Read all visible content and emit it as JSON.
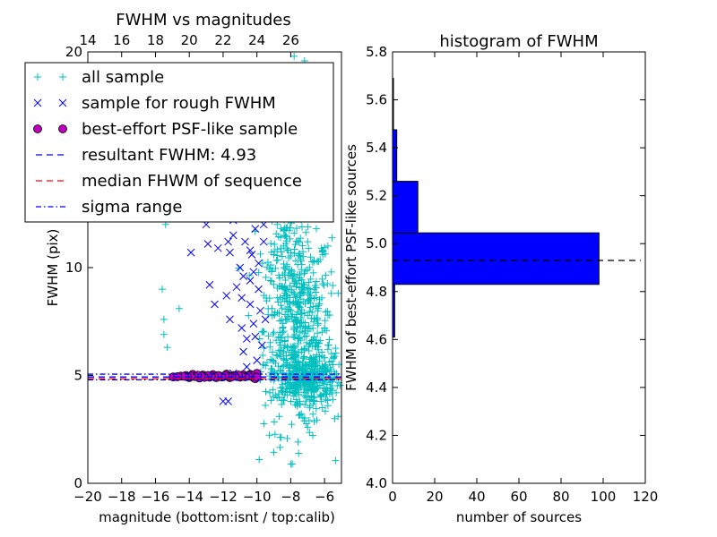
{
  "chart_data": [
    {
      "type": "scatter",
      "title": "FWHM vs magnitudes",
      "xlabel": "magnitude (bottom:isnt / top:calib)",
      "ylabel": "FWHM (pix)",
      "xlim": [
        -20,
        -5
      ],
      "ylim": [
        0,
        20
      ],
      "x_ticks": [
        -20,
        -18,
        -16,
        -14,
        -12,
        -10,
        -8,
        -6
      ],
      "y_ticks": [
        0,
        5,
        10,
        15,
        20
      ],
      "top_axis": {
        "offset": 34,
        "ticks": [
          14,
          16,
          18,
          20,
          22,
          24,
          26
        ]
      },
      "grid": false,
      "legend_position": "upper-left",
      "series": [
        {
          "name": "all sample",
          "marker": "plus",
          "color": "#00bfbf",
          "points": [
            [
              -15.4,
              12.0
            ],
            [
              -15.6,
              9.0
            ],
            [
              -15.5,
              7.6
            ],
            [
              -15.3,
              6.3
            ],
            [
              -15.5,
              6.9
            ],
            [
              -14.6,
              8.1
            ],
            [
              -14.0,
              12.5
            ],
            [
              -9.2,
              18.2
            ],
            [
              -7.0,
              11.2
            ],
            [
              -6.4,
              4.4
            ],
            [
              -5.6,
              8.8
            ],
            [
              -5.4,
              3.0
            ],
            [
              -5.2,
              3.1
            ],
            [
              -7.2,
              2.9
            ],
            [
              -7.0,
              2.6
            ],
            [
              -6.6,
              3.8
            ],
            [
              -8.2,
              16.5
            ],
            [
              -8.0,
              15.5
            ],
            [
              -7.6,
              14.0
            ],
            [
              -7.4,
              13.0
            ],
            [
              -8.8,
              12.0
            ],
            [
              -8.6,
              11.4
            ],
            [
              -9.0,
              10.6
            ],
            [
              -8.4,
              10.0
            ],
            [
              -7.8,
              9.6
            ],
            [
              -7.2,
              9.2
            ],
            [
              -6.8,
              8.6
            ],
            [
              -6.4,
              8.0
            ],
            [
              -6.0,
              7.2
            ],
            [
              -5.8,
              6.4
            ],
            [
              -8.6,
              5.2
            ],
            [
              -8.2,
              4.8
            ],
            [
              -7.6,
              4.6
            ],
            [
              -7.0,
              4.3
            ],
            [
              -6.6,
              4.0
            ],
            [
              -6.2,
              3.8
            ],
            [
              -5.8,
              3.6
            ],
            [
              -5.6,
              4.9
            ],
            [
              -5.5,
              5.5
            ],
            [
              -5.7,
              7.8
            ],
            [
              -5.6,
              9.8
            ],
            [
              -5.8,
              11.0
            ],
            [
              -6.6,
              12.4
            ],
            [
              -7.4,
              16.4
            ],
            [
              -7.0,
              18.4
            ],
            [
              -9.8,
              4.8
            ],
            [
              -9.4,
              5.6
            ],
            [
              -9.0,
              7.0
            ],
            [
              -8.8,
              8.6
            ],
            [
              -9.2,
              9.4
            ],
            [
              -9.6,
              12.6
            ],
            [
              -8.6,
              14.2
            ],
            [
              -8.4,
              18.0
            ],
            [
              -7.8,
              19.8
            ]
          ],
          "clouds": [
            {
              "cx": -7.6,
              "cy": 7.2,
              "sx": 1.0,
              "sy": 2.4,
              "n": 520
            },
            {
              "cx": -8.6,
              "cy": 13.5,
              "sx": 0.7,
              "sy": 3.0,
              "n": 180
            },
            {
              "cx": -7.0,
              "cy": 4.9,
              "sx": 1.0,
              "sy": 0.55,
              "n": 320
            }
          ]
        },
        {
          "name": "sample for rough FWHM",
          "marker": "x",
          "color": "#0000ff",
          "points": [
            [
              -13.9,
              10.7
            ],
            [
              -12.9,
              11.1
            ],
            [
              -12.3,
              10.9
            ],
            [
              -11.6,
              10.7
            ],
            [
              -11.4,
              11.5
            ],
            [
              -12.8,
              9.2
            ],
            [
              -12.5,
              8.3
            ],
            [
              -11.8,
              8.7
            ],
            [
              -11.2,
              9.1
            ],
            [
              -11.6,
              7.6
            ],
            [
              -10.9,
              7.2
            ],
            [
              -10.6,
              6.7
            ],
            [
              -11.4,
              5.1
            ],
            [
              -12.0,
              3.8
            ],
            [
              -11.7,
              3.8
            ],
            [
              -10.8,
              9.6
            ],
            [
              -10.4,
              8.3
            ],
            [
              -10.2,
              7.4
            ],
            [
              -10.1,
              6.8
            ],
            [
              -10.0,
              5.7
            ],
            [
              -10.3,
              10.6
            ],
            [
              -10.1,
              11.8
            ],
            [
              -10.0,
              12.7
            ],
            [
              -11.2,
              13.6
            ],
            [
              -12.0,
              14.7
            ],
            [
              -11.0,
              16.1
            ],
            [
              -10.2,
              14.2
            ],
            [
              -10.1,
              15.7
            ],
            [
              -11.4,
              12.2
            ],
            [
              -12.2,
              12.4
            ],
            [
              -13.0,
              12.0
            ],
            [
              -11.8,
              13.1
            ],
            [
              -10.5,
              12.4
            ],
            [
              -11.0,
              10.0
            ],
            [
              -10.4,
              9.4
            ],
            [
              -9.9,
              9.0
            ],
            [
              -9.8,
              8.0
            ],
            [
              -10.7,
              11.2
            ],
            [
              -11.7,
              11.2
            ],
            [
              -10.2,
              13.2
            ],
            [
              -10.0,
              14.4
            ],
            [
              -10.2,
              9.8
            ],
            [
              -10.6,
              5.4
            ],
            [
              -10.8,
              6.1
            ],
            [
              -9.7,
              6.4
            ],
            [
              -9.9,
              10.2
            ],
            [
              -9.6,
              12.0
            ],
            [
              -10.3,
              16.6
            ],
            [
              -10.0,
              17.5
            ],
            [
              -9.8,
              15.0
            ],
            [
              -10.6,
              15.2
            ],
            [
              -10.9,
              13.0
            ],
            [
              -9.6,
              11.2
            ],
            [
              -9.5,
              7.6
            ],
            [
              -10.4,
              10.8
            ],
            [
              -10.9,
              8.6
            ]
          ]
        },
        {
          "name": "best-effort PSF-like sample",
          "marker": "circle",
          "color": "#bf00bf",
          "edge": "#000000",
          "points": [
            [
              -14.95,
              4.93
            ],
            [
              -14.5,
              4.97
            ],
            [
              -14.2,
              5.0
            ],
            [
              -14.0,
              4.9
            ],
            [
              -13.8,
              5.05
            ],
            [
              -13.6,
              4.95
            ],
            [
              -13.4,
              4.88
            ],
            [
              -13.2,
              5.02
            ],
            [
              -13.0,
              4.96
            ],
            [
              -12.8,
              4.92
            ],
            [
              -12.6,
              5.04
            ],
            [
              -12.4,
              4.9
            ],
            [
              -12.2,
              4.98
            ],
            [
              -12.0,
              4.94
            ],
            [
              -11.8,
              5.06
            ],
            [
              -11.6,
              4.9
            ],
            [
              -11.4,
              5.0
            ],
            [
              -11.2,
              4.95
            ],
            [
              -11.0,
              4.92
            ],
            [
              -10.8,
              5.03
            ],
            [
              -10.6,
              4.96
            ],
            [
              -10.4,
              5.05
            ],
            [
              -10.2,
              4.9
            ],
            [
              -10.0,
              5.1
            ],
            [
              -10.1,
              4.85
            ],
            [
              -10.3,
              5.0
            ],
            [
              -10.5,
              4.98
            ],
            [
              -10.7,
              4.94
            ],
            [
              -10.9,
              4.96
            ],
            [
              -11.1,
              5.02
            ],
            [
              -11.3,
              4.97
            ],
            [
              -11.5,
              4.93
            ],
            [
              -11.7,
              4.96
            ],
            [
              -11.9,
              4.99
            ],
            [
              -12.1,
              4.93
            ],
            [
              -12.3,
              5.0
            ],
            [
              -12.5,
              4.94
            ],
            [
              -12.7,
              4.97
            ],
            [
              -12.9,
              5.0
            ],
            [
              -13.1,
              4.91
            ],
            [
              -13.3,
              4.98
            ],
            [
              -13.5,
              5.01
            ],
            [
              -13.7,
              4.95
            ],
            [
              -13.9,
              4.97
            ],
            [
              -14.1,
              4.93
            ],
            [
              -14.3,
              4.96
            ],
            [
              -14.7,
              4.94
            ],
            [
              -10.0,
              4.92
            ]
          ]
        },
        {
          "name": "resultant FWHM: 4.93",
          "type": "hline",
          "style": "dashed",
          "color": "#0000ff",
          "value": 4.93
        },
        {
          "name": "median FHWM of sequence",
          "type": "hline",
          "style": "dashed",
          "color": "#ff0000",
          "value": 4.85
        },
        {
          "name": "sigma range",
          "type": "hline-pair",
          "style": "dashdot",
          "color": "#0000ff",
          "values": [
            4.8,
            5.06
          ]
        }
      ]
    },
    {
      "type": "bar",
      "orientation": "horizontal",
      "title": "histogram of FWHM",
      "xlabel": "number of sources",
      "ylabel": "FWHM of best-effort PSF-like sources",
      "xlim": [
        0,
        120
      ],
      "ylim": [
        4.0,
        5.8
      ],
      "x_ticks": [
        0,
        20,
        40,
        60,
        80,
        100,
        120
      ],
      "y_ticks": [
        4.0,
        4.2,
        4.4,
        4.6,
        4.8,
        5.0,
        5.2,
        5.4,
        5.6,
        5.8
      ],
      "grid": false,
      "bar_color": "#0000ff",
      "bins": [
        {
          "y0": 4.61,
          "y1": 4.83,
          "count": 1
        },
        {
          "y0": 4.83,
          "y1": 5.045,
          "count": 98
        },
        {
          "y0": 5.045,
          "y1": 5.26,
          "count": 12
        },
        {
          "y0": 5.26,
          "y1": 5.475,
          "count": 2
        },
        {
          "y0": 5.475,
          "y1": 5.69,
          "count": 0.3
        }
      ],
      "reference_line": {
        "value": 4.93,
        "style": "dashed",
        "color": "#000000"
      }
    }
  ]
}
